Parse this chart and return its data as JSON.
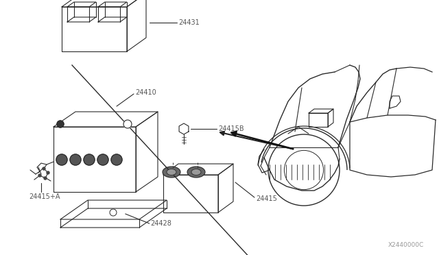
{
  "bg_color": "#ffffff",
  "line_color": "#2a2a2a",
  "label_color": "#555555",
  "watermark": "X2440000C",
  "parts": {
    "24431": {
      "label": "24431"
    },
    "24410": {
      "label": "24410"
    },
    "24415B": {
      "label": "24415B"
    },
    "24415": {
      "label": "24415"
    },
    "24415A": {
      "label": "24415+A"
    },
    "24428": {
      "label": "24428"
    }
  }
}
